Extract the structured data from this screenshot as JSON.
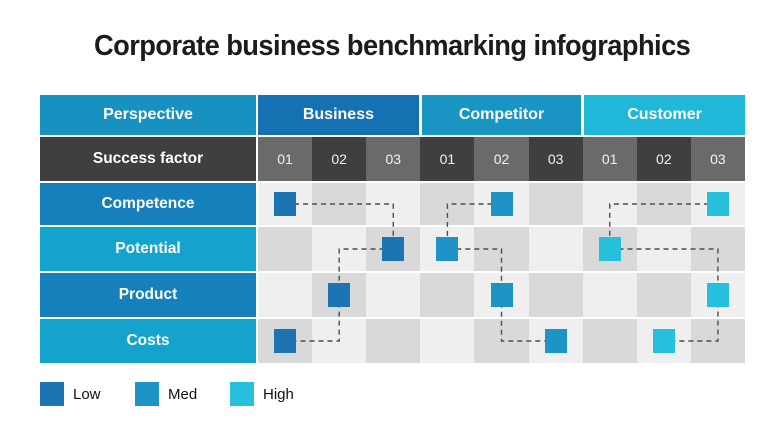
{
  "title": "Corporate business benchmarking infographics",
  "table": {
    "perspective_label": "Perspective",
    "success_factor_label": "Success factor",
    "groups": [
      {
        "label": "Business",
        "header_color": "#1571B2",
        "marker_color": "#1C74B2",
        "level": "Low"
      },
      {
        "label": "Competitor",
        "header_color": "#1995C4",
        "marker_color": "#1D93C6",
        "level": "Med"
      },
      {
        "label": "Customer",
        "header_color": "#21B7D8",
        "marker_color": "#26BFDC",
        "level": "High"
      }
    ],
    "sub_columns": [
      "01",
      "02",
      "03"
    ],
    "row_labels": [
      "Competence",
      "Potential",
      "Product",
      "Costs"
    ]
  },
  "colors": {
    "perspective_header": "#1791C0",
    "row_label_dark": "#1580BC",
    "row_label_light": "#14A3CD",
    "success_bg_dark": "#3F3F3F",
    "success_bg_light": "#6A6A6A",
    "cell_light": "#EFEFEF",
    "cell_dark": "#D9D9D9",
    "connector": "#4D4D4D",
    "title_text": "#1C1C1C",
    "legend_text": "#111111"
  },
  "legend": [
    {
      "label": "Low",
      "color": "#1C74B2"
    },
    {
      "label": "Med",
      "color": "#1D93C6"
    },
    {
      "label": "High",
      "color": "#26BFDC"
    }
  ],
  "chart_data": {
    "type": "table",
    "title": "Corporate business benchmarking infographics",
    "rows": [
      "Competence",
      "Potential",
      "Product",
      "Costs"
    ],
    "column_groups": [
      "Business",
      "Competitor",
      "Customer"
    ],
    "sub_columns": [
      "01",
      "02",
      "03"
    ],
    "series": [
      {
        "name": "Business",
        "legend": "Low",
        "placements": {
          "Competence": "01",
          "Potential": "03",
          "Product": "02",
          "Costs": "01"
        }
      },
      {
        "name": "Competitor",
        "legend": "Med",
        "placements": {
          "Competence": "02",
          "Potential": "01",
          "Product": "02",
          "Costs": "03"
        }
      },
      {
        "name": "Customer",
        "legend": "High",
        "placements": {
          "Competence": "03",
          "Potential": "01",
          "Product": "03",
          "Costs": "02"
        }
      }
    ],
    "legend_entries": [
      "Low",
      "Med",
      "High"
    ]
  }
}
